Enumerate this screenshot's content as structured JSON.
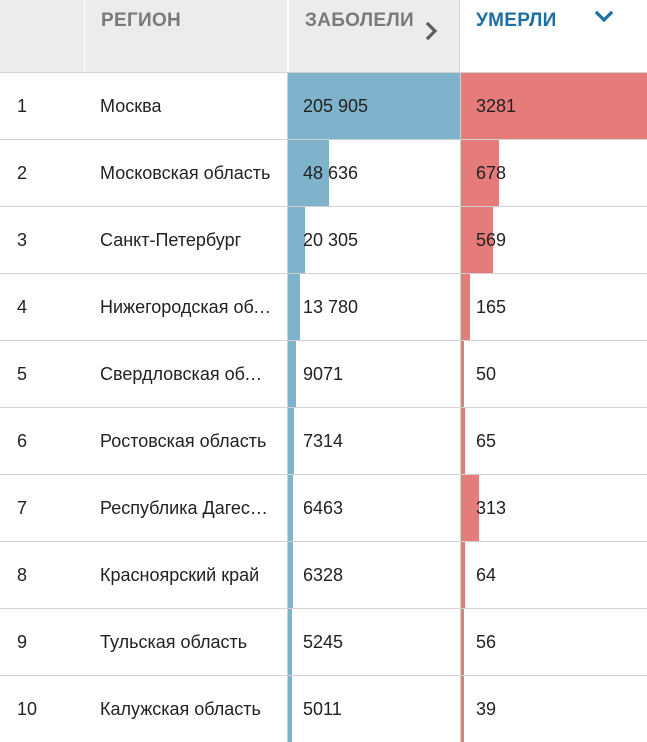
{
  "header": {
    "rank_label": "",
    "region_label": "РЕГИОН",
    "cases_label": "ЗАБОЛЕЛИ",
    "deaths_label": "УМЕРЛИ",
    "cases_sort_icon": "chevron-right-icon",
    "deaths_sort_icon": "chevron-down-icon"
  },
  "colors": {
    "cases_bar": "#7fb3cc",
    "deaths_bar": "#e57b7b",
    "active_header": "#1d6fa5",
    "inactive_header": "#7a7a7a",
    "header_bg": "#ececec"
  },
  "max": {
    "cases": 205905,
    "deaths": 3281
  },
  "rows": [
    {
      "rank": "1",
      "region": "Москва",
      "cases": "205 905",
      "cases_value": 205905,
      "deaths": "3281",
      "deaths_value": 3281
    },
    {
      "rank": "2",
      "region": "Московская область",
      "cases": "48 636",
      "cases_value": 48636,
      "deaths": "678",
      "deaths_value": 678
    },
    {
      "rank": "3",
      "region": "Санкт-Петербург",
      "cases": "20 305",
      "cases_value": 20305,
      "deaths": "569",
      "deaths_value": 569
    },
    {
      "rank": "4",
      "region": "Нижегородская область",
      "cases": "13 780",
      "cases_value": 13780,
      "deaths": "165",
      "deaths_value": 165
    },
    {
      "rank": "5",
      "region": "Свердловская область",
      "cases": "9071",
      "cases_value": 9071,
      "deaths": "50",
      "deaths_value": 50
    },
    {
      "rank": "6",
      "region": "Ростовская область",
      "cases": "7314",
      "cases_value": 7314,
      "deaths": "65",
      "deaths_value": 65
    },
    {
      "rank": "7",
      "region": "Республика Дагестан",
      "cases": "6463",
      "cases_value": 6463,
      "deaths": "313",
      "deaths_value": 313
    },
    {
      "rank": "8",
      "region": "Красноярский край",
      "cases": "6328",
      "cases_value": 6328,
      "deaths": "64",
      "deaths_value": 64
    },
    {
      "rank": "9",
      "region": "Тульская область",
      "cases": "5245",
      "cases_value": 5245,
      "deaths": "56",
      "deaths_value": 56
    },
    {
      "rank": "10",
      "region": "Калужская область",
      "cases": "5011",
      "cases_value": 5011,
      "deaths": "39",
      "deaths_value": 39
    }
  ]
}
